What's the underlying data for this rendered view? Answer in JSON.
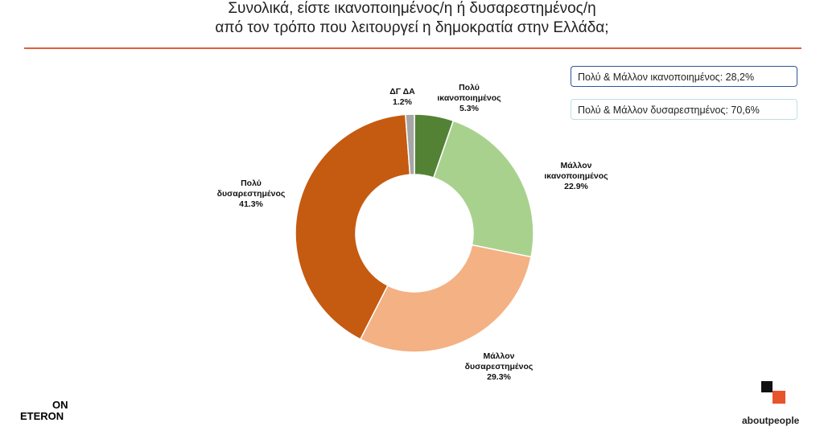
{
  "chart_data": {
    "type": "donut",
    "title": [
      "Συνολικά, είστε ικανοποιημένος/η ή δυσαρεστημένος/η",
      "από τον τρόπο που λειτουργεί η δημοκρατία στην Ελλάδα;"
    ],
    "categories": [
      "Πολύ ικανοποιημένος",
      "Μάλλον ικανοποιημένος",
      "Μάλλον δυσαρεστημένος",
      "Πολύ δυσαρεστημένος",
      "ΔΓ ΔΑ"
    ],
    "values": [
      5.3,
      22.9,
      29.3,
      41.3,
      1.2
    ],
    "value_labels": [
      "5.3%",
      "22.9%",
      "29.3%",
      "41.3%",
      "1.2%"
    ],
    "colors": [
      "#548235",
      "#a9d18e",
      "#f4b183",
      "#c55a11",
      "#a6a6a6"
    ],
    "annotations": [
      "Πολύ & Μάλλον ικανοποιημένος: 28,2%",
      "Πολύ & Μάλλον δυσαρεστημένος: 70,6%"
    ]
  },
  "logos": {
    "left": [
      "ON",
      "ETERON"
    ],
    "right": "aboutpeople"
  }
}
